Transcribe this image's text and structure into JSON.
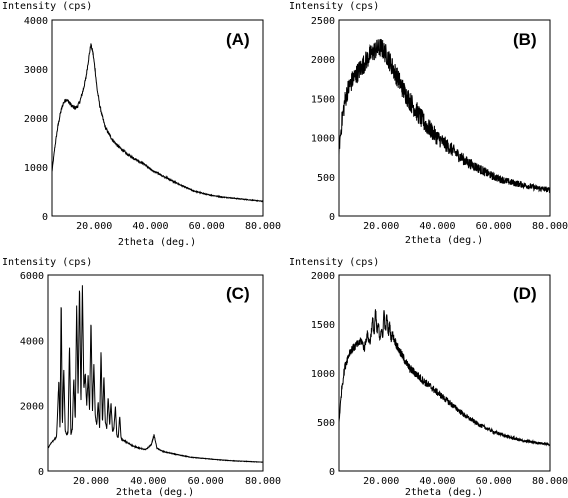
{
  "chart_data": [
    {
      "type": "line",
      "panel_label": "(A)",
      "ylabel": "Intensity (cps)",
      "xlabel": "2theta (deg.)",
      "xlim": [
        5,
        80
      ],
      "ylim": [
        0,
        4000
      ],
      "x_ticks": [
        "20.000",
        "40.000",
        "60.000",
        "80.000"
      ],
      "x_tick_values": [
        20,
        40,
        60,
        80
      ],
      "y_ticks": [
        "0",
        "1000",
        "2000",
        "3000",
        "4000"
      ],
      "y_tick_values": [
        0,
        1000,
        2000,
        3000,
        4000
      ],
      "noise": 40,
      "series": [
        {
          "x": [
            5,
            6,
            7,
            8,
            9,
            10,
            11,
            12,
            13,
            14,
            15,
            16,
            17,
            18,
            18.8,
            19.5,
            20.3,
            21,
            22,
            23,
            24,
            26,
            28,
            30,
            32,
            35,
            38,
            40,
            45,
            50,
            55,
            60,
            65,
            70,
            75,
            80
          ],
          "y": [
            900,
            1400,
            1800,
            2100,
            2300,
            2380,
            2330,
            2250,
            2200,
            2230,
            2350,
            2550,
            2800,
            3200,
            3500,
            3350,
            3000,
            2600,
            2250,
            2000,
            1800,
            1600,
            1450,
            1350,
            1250,
            1150,
            1050,
            950,
            800,
            650,
            520,
            440,
            390,
            360,
            330,
            300
          ]
        }
      ]
    },
    {
      "type": "line",
      "panel_label": "(B)",
      "ylabel": "Intensity (cps)",
      "xlabel": "2theta (deg.)",
      "xlim": [
        5,
        80
      ],
      "ylim": [
        0,
        2500
      ],
      "x_ticks": [
        "20.000",
        "40.000",
        "60.000",
        "80.000"
      ],
      "x_tick_values": [
        20,
        40,
        60,
        80
      ],
      "y_ticks": [
        "0",
        "500",
        "1000",
        "1500",
        "2000",
        "2500"
      ],
      "y_tick_values": [
        0,
        500,
        1000,
        1500,
        2000,
        2500
      ],
      "noise": 130,
      "series": [
        {
          "x": [
            5,
            6,
            7,
            8,
            10,
            12,
            14,
            16,
            18,
            20,
            22,
            24,
            26,
            28,
            30,
            35,
            40,
            45,
            50,
            55,
            60,
            65,
            70,
            75,
            80
          ],
          "y": [
            850,
            1200,
            1450,
            1600,
            1750,
            1850,
            1950,
            2050,
            2120,
            2150,
            2050,
            1900,
            1750,
            1600,
            1480,
            1200,
            1000,
            850,
            700,
            600,
            500,
            440,
            400,
            360,
            330
          ]
        }
      ]
    },
    {
      "type": "line",
      "panel_label": "(C)",
      "ylabel": "Intensity (cps)",
      "xlabel": "2theta (deg.)",
      "xlim": [
        5,
        80
      ],
      "ylim": [
        0,
        6000
      ],
      "x_ticks": [
        "20.000",
        "40.000",
        "60.000",
        "80.000"
      ],
      "x_tick_values": [
        20,
        40,
        60,
        80
      ],
      "y_ticks": [
        "0",
        "2000",
        "4000",
        "6000"
      ],
      "y_tick_values": [
        0,
        2000,
        4000,
        6000
      ],
      "noise": 60,
      "series": [
        {
          "x": [
            5,
            6,
            7,
            8,
            8.8,
            9.2,
            9.6,
            10,
            10.5,
            11,
            11.5,
            12,
            12.5,
            13,
            13.5,
            14,
            14.5,
            15,
            15.5,
            16,
            16.5,
            17,
            17.5,
            18,
            18.5,
            19,
            19.5,
            20,
            20.5,
            21,
            21.5,
            22,
            22.5,
            23,
            23.5,
            24,
            24.5,
            25,
            25.5,
            26,
            26.5,
            27,
            27.5,
            28,
            28.5,
            29,
            29.5,
            30,
            30.5,
            31,
            32,
            33,
            34,
            35,
            37,
            39,
            41,
            42,
            43,
            45,
            50,
            55,
            60,
            65,
            70,
            75,
            80
          ],
          "y": [
            700,
            850,
            950,
            1050,
            2800,
            1200,
            5400,
            1300,
            3200,
            1250,
            1100,
            1200,
            3900,
            1100,
            1300,
            2900,
            1500,
            5100,
            2300,
            5800,
            2000,
            5700,
            2500,
            3000,
            2000,
            2900,
            1800,
            4700,
            1800,
            3300,
            1700,
            1400,
            2100,
            1300,
            3700,
            1400,
            2900,
            1500,
            1300,
            2300,
            1400,
            2100,
            1200,
            1300,
            2000,
            1100,
            1000,
            1700,
            1000,
            950,
            900,
            850,
            800,
            750,
            700,
            650,
            800,
            1100,
            700,
            600,
            500,
            420,
            380,
            340,
            310,
            290,
            270
          ]
        }
      ]
    },
    {
      "type": "line",
      "panel_label": "(D)",
      "ylabel": "Intensity (cps)",
      "xlabel": "2theta (deg.)",
      "xlim": [
        5,
        80
      ],
      "ylim": [
        0,
        2000
      ],
      "x_ticks": [
        "20.000",
        "40.000",
        "60.000",
        "80.000"
      ],
      "x_tick_values": [
        20,
        40,
        60,
        80
      ],
      "y_ticks": [
        "0",
        "500",
        "1000",
        "1500",
        "2000"
      ],
      "y_tick_values": [
        0,
        500,
        1000,
        1500,
        2000
      ],
      "noise": 45,
      "series": [
        {
          "x": [
            5,
            6,
            7,
            8,
            9,
            10,
            11,
            12,
            13,
            14,
            15,
            16,
            17,
            17.5,
            18,
            18.5,
            19,
            19.5,
            20,
            20.5,
            21,
            21.5,
            22,
            22.5,
            23,
            23.5,
            24,
            24.5,
            25,
            26,
            27,
            28,
            30,
            32,
            35,
            38,
            40,
            45,
            50,
            55,
            60,
            65,
            70,
            75,
            80
          ],
          "y": [
            500,
            850,
            1050,
            1150,
            1230,
            1250,
            1280,
            1300,
            1330,
            1250,
            1400,
            1300,
            1550,
            1380,
            1650,
            1400,
            1500,
            1350,
            1450,
            1350,
            1650,
            1400,
            1600,
            1400,
            1500,
            1350,
            1400,
            1350,
            1320,
            1250,
            1200,
            1150,
            1050,
            1000,
            920,
            850,
            800,
            680,
            560,
            470,
            400,
            350,
            310,
            290,
            270
          ]
        }
      ]
    }
  ]
}
